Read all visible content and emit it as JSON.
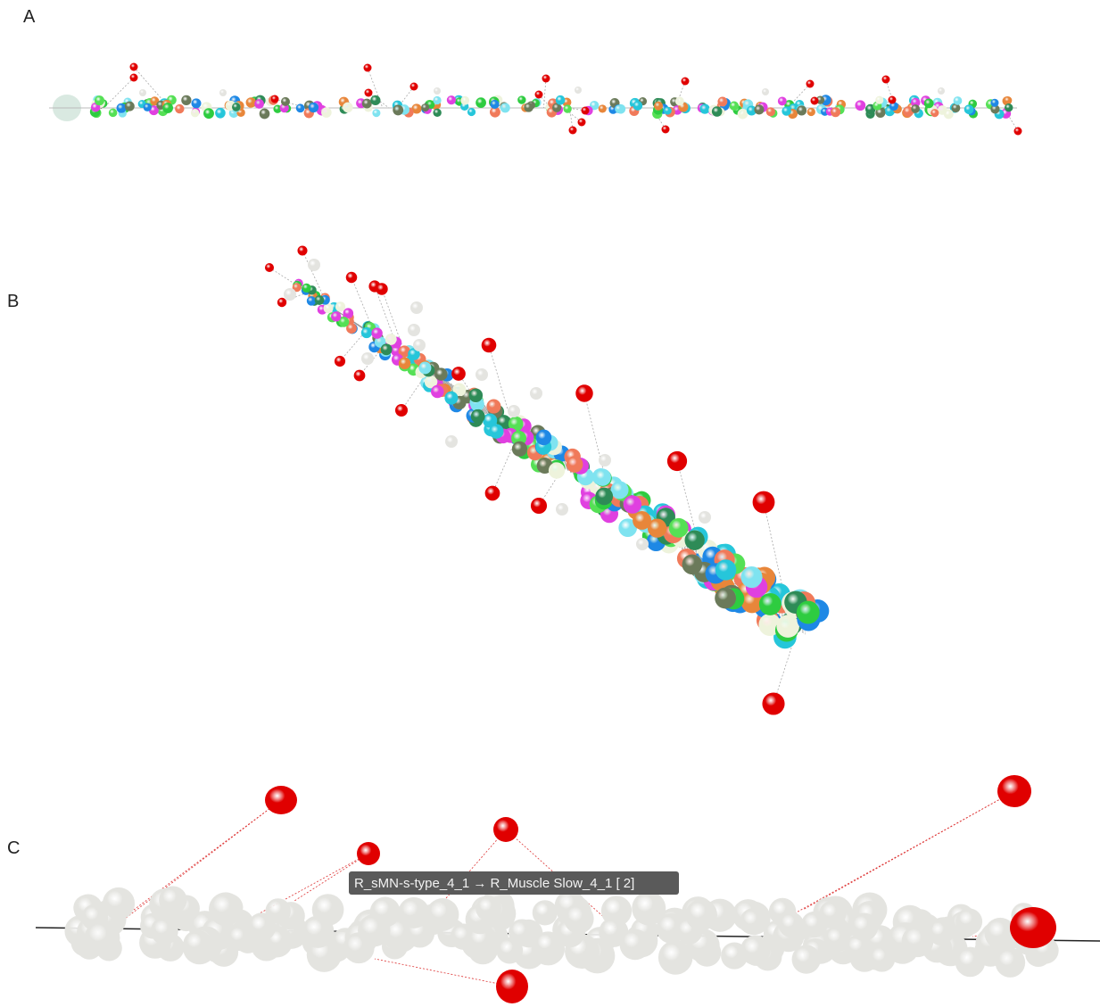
{
  "panels": [
    {
      "label": "A"
    },
    {
      "label": "B"
    },
    {
      "label": "C",
      "tooltip": "R_sMN-s-type_4_1 → R_Muscle Slow_4_1 [ 2]"
    }
  ]
}
